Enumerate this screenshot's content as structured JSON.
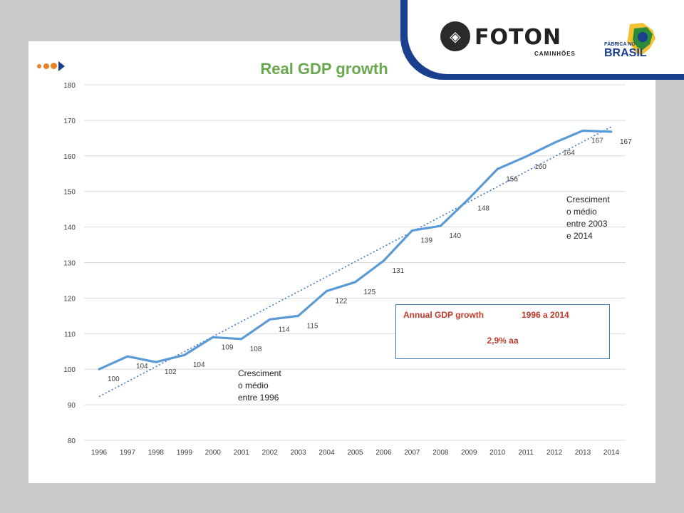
{
  "title": "Real GDP growth",
  "brand": {
    "name": "FOTON",
    "subtitle": "CAMINHÕES",
    "badge_small": "FÁBRICA NO",
    "badge_big": "BRASIL"
  },
  "colors": {
    "title": "#6aa84f",
    "series": "#5b9bd5",
    "trend": "#3a78c5",
    "banner": "#1b3f8f",
    "accent": "#e8832a",
    "box_text": "#c0392b"
  },
  "annotations": {
    "left": [
      "Cresciment",
      "o médio",
      "entre 1996"
    ],
    "right": [
      "Cresciment",
      "o médio",
      "entre 2003",
      "e 2014"
    ]
  },
  "growth_box": {
    "label": "Annual GDP growth",
    "period": "1996  a 2014",
    "value": "2,9% aa"
  },
  "chart_data": {
    "type": "line",
    "title": "Real GDP growth",
    "x": [
      "1996",
      "1997",
      "1998",
      "1999",
      "2000",
      "2001",
      "2002",
      "2003",
      "2004",
      "2005",
      "2006",
      "2007",
      "2008",
      "2009",
      "2010",
      "2011",
      "2012",
      "2013",
      "2014"
    ],
    "series": [
      {
        "values": [
          100,
          103.6,
          102,
          104,
          109,
          108.5,
          114,
          115,
          122,
          124.5,
          130.5,
          139,
          140.3,
          148,
          156.3,
          159.8,
          163.7,
          167.1,
          166.8
        ],
        "labels": [
          "100",
          "104",
          "102",
          "104",
          "109",
          "108",
          "114",
          "115",
          "122",
          "125",
          "131",
          "139",
          "140",
          "148",
          "156",
          "160",
          "164",
          "167",
          "167"
        ]
      }
    ],
    "trendline": {
      "start": [
        1996,
        92.3
      ],
      "end": [
        2014,
        168.2
      ]
    },
    "yticks": [
      80,
      90,
      100,
      110,
      120,
      130,
      140,
      150,
      160,
      170,
      180
    ],
    "ylim": [
      80,
      180
    ],
    "grid": true,
    "legend": "none"
  }
}
